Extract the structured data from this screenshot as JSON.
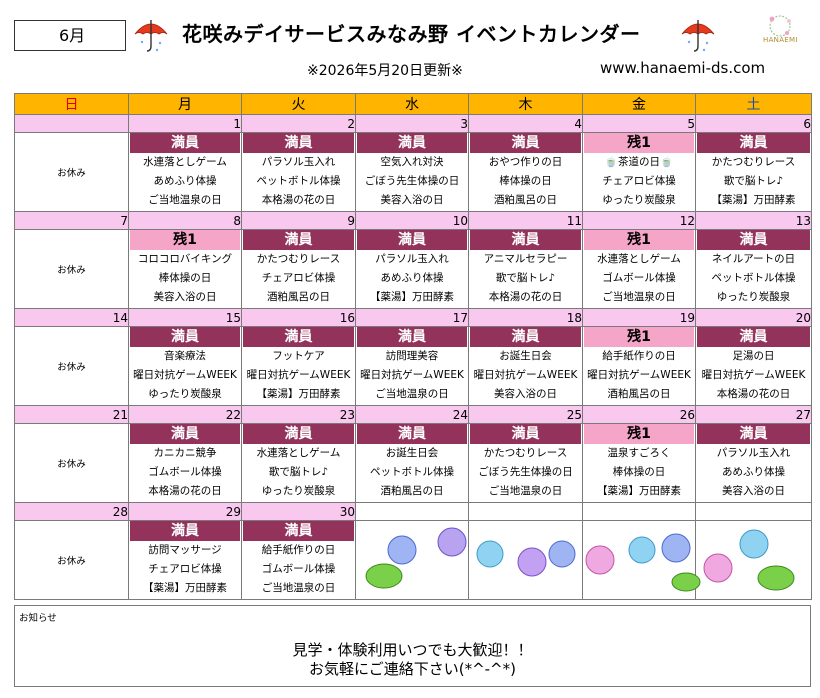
{
  "header": {
    "month": "6月",
    "title": "花咲みデイサービスみなみ野 イベントカレンダー",
    "updated": "※2026年5月20日更新※",
    "url": "www.hanaemi-ds.com",
    "logo_text": "HANAEMI"
  },
  "weekdays": [
    "日",
    "月",
    "火",
    "水",
    "木",
    "金",
    "土"
  ],
  "weeks": [
    {
      "dates": [
        "",
        "1",
        "2",
        "3",
        "4",
        "5",
        "6"
      ],
      "days": [
        {
          "sunday": "お休み"
        },
        {
          "status": "満員",
          "lines": [
            "水連落としゲーム",
            "あめふり体操",
            "ご当地温泉の日"
          ]
        },
        {
          "status": "満員",
          "lines": [
            "パラソル玉入れ",
            "ペットボトル体操",
            "本格湯の花の日"
          ]
        },
        {
          "status": "満員",
          "lines": [
            "空気入れ対決",
            "ごぼう先生体操の日",
            "美容入浴の日"
          ]
        },
        {
          "status": "満員",
          "lines": [
            "おやつ作りの日",
            "棒体操の日",
            "酒粕風呂の日"
          ]
        },
        {
          "status": "残1",
          "lines": [
            "🍵茶道の日🍵",
            "チェアロビ体操",
            "ゆったり炭酸泉"
          ]
        },
        {
          "status": "満員",
          "lines": [
            "かたつむりレース",
            "歌で脳トレ♪",
            "【薬湯】万田酵素"
          ]
        }
      ]
    },
    {
      "dates": [
        "7",
        "8",
        "9",
        "10",
        "11",
        "12",
        "13"
      ],
      "days": [
        {
          "sunday": "お休み"
        },
        {
          "status": "残1",
          "lines": [
            "コロコロバイキング",
            "棒体操の日",
            "美容入浴の日"
          ]
        },
        {
          "status": "満員",
          "lines": [
            "かたつむりレース",
            "チェアロビ体操",
            "酒粕風呂の日"
          ]
        },
        {
          "status": "満員",
          "lines": [
            "パラソル玉入れ",
            "あめふり体操",
            "【薬湯】万田酵素"
          ]
        },
        {
          "status": "満員",
          "lines": [
            "アニマルセラピー",
            "歌で脳トレ♪",
            "本格湯の花の日"
          ]
        },
        {
          "status": "残1",
          "lines": [
            "水連落としゲーム",
            "ゴムボール体操",
            "ご当地温泉の日"
          ]
        },
        {
          "status": "満員",
          "lines": [
            "ネイルアートの日",
            "ペットボトル体操",
            "ゆったり炭酸泉"
          ]
        }
      ]
    },
    {
      "dates": [
        "14",
        "15",
        "16",
        "17",
        "18",
        "19",
        "20"
      ],
      "days": [
        {
          "sunday": "お休み"
        },
        {
          "status": "満員",
          "lines": [
            "音楽療法",
            "曜日対抗ゲームWEEK",
            "ゆったり炭酸泉"
          ]
        },
        {
          "status": "満員",
          "lines": [
            "フットケア",
            "曜日対抗ゲームWEEK",
            "【薬湯】万田酵素"
          ]
        },
        {
          "status": "満員",
          "lines": [
            "訪問理美容",
            "曜日対抗ゲームWEEK",
            "ご当地温泉の日"
          ]
        },
        {
          "status": "満員",
          "lines": [
            "お誕生日会",
            "曜日対抗ゲームWEEK",
            "美容入浴の日"
          ]
        },
        {
          "status": "残1",
          "lines": [
            "給手紙作りの日",
            "曜日対抗ゲームWEEK",
            "酒粕風呂の日"
          ]
        },
        {
          "status": "満員",
          "lines": [
            "足湯の日",
            "曜日対抗ゲームWEEK",
            "本格湯の花の日"
          ]
        }
      ]
    },
    {
      "dates": [
        "21",
        "22",
        "23",
        "24",
        "25",
        "26",
        "27"
      ],
      "days": [
        {
          "sunday": "お休み"
        },
        {
          "status": "満員",
          "lines": [
            "カニカニ競争",
            "ゴムボール体操",
            "本格湯の花の日"
          ]
        },
        {
          "status": "満員",
          "lines": [
            "水連落としゲーム",
            "歌で脳トレ♪",
            "ゆったり炭酸泉"
          ]
        },
        {
          "status": "満員",
          "lines": [
            "お誕生日会",
            "ペットボトル体操",
            "酒粕風呂の日"
          ]
        },
        {
          "status": "満員",
          "lines": [
            "かたつむりレース",
            "ごぼう先生体操の日",
            "ご当地温泉の日"
          ]
        },
        {
          "status": "残1",
          "lines": [
            "温泉すごろく",
            "棒体操の日",
            "【薬湯】万田酵素"
          ]
        },
        {
          "status": "満員",
          "lines": [
            "パラソル玉入れ",
            "あめふり体操",
            "美容入浴の日"
          ]
        }
      ]
    },
    {
      "dates": [
        "28",
        "29",
        "30",
        "",
        "",
        "",
        ""
      ],
      "days": [
        {
          "sunday": "お休み"
        },
        {
          "status": "満員",
          "lines": [
            "訪問マッサージ",
            "チェアロビ体操",
            "【薬湯】万田酵素"
          ]
        },
        {
          "status": "満員",
          "lines": [
            "給手紙作りの日",
            "ゴムボール体操",
            "ご当地温泉の日"
          ]
        },
        {},
        {},
        {},
        {}
      ]
    }
  ],
  "notice": {
    "label": "お知らせ",
    "line1": "見学・体験利用いつでも大歓迎！！",
    "line2": "お気軽にご連絡下さい(*^-^*)"
  },
  "colors": {
    "weekday_header": "#ffb400",
    "date_row": "#f8c8ee",
    "full_badge": "#93335c",
    "few_badge": "#f5a6c8",
    "sunday_text": "#e00000",
    "saturday_text": "#1e4f9e"
  },
  "icons": [
    "umbrella-icon",
    "umbrella-icon",
    "hydrangea-flower-icon",
    "leaf-icon"
  ]
}
